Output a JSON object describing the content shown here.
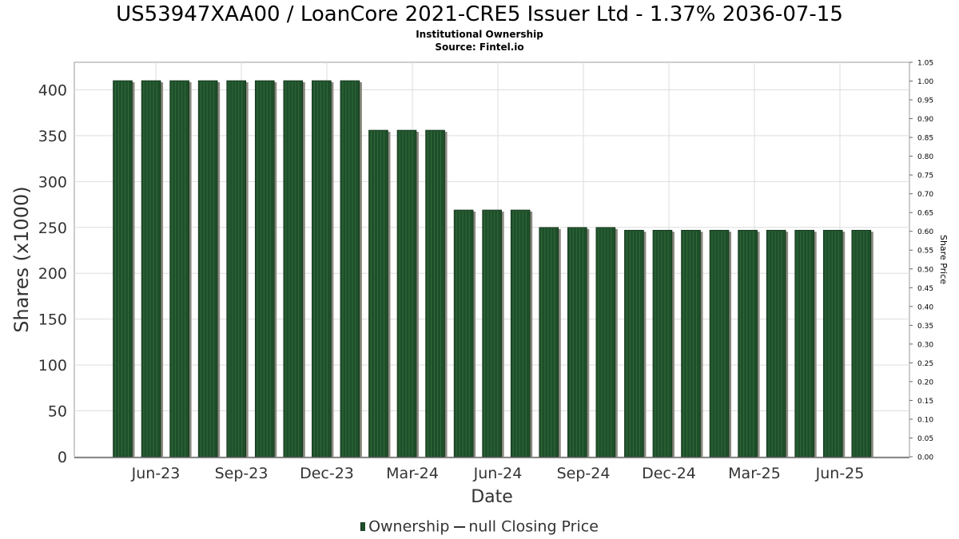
{
  "title": "US53947XAA00 / LoanCore 2021-CRE5 Issuer Ltd - 1.37% 2036-07-15",
  "subtitle_line1": "Institutional Ownership",
  "subtitle_line2": "Source: Fintel.io",
  "legend": {
    "ownership_label": "Ownership",
    "price_label": "null Closing Price"
  },
  "colors": {
    "bar_fill": "#1f4f2a",
    "bar_stripe": "#2e6b3a",
    "bar_shadow": "#8a8a80",
    "grid": "#dddddd"
  },
  "chart_data": {
    "type": "bar",
    "xlabel": "Date",
    "ylabel": "Shares (x1000)",
    "y2label": "Share Price",
    "ylim": [
      0,
      430
    ],
    "y2lim": [
      0,
      1.05
    ],
    "yticks": [
      0,
      50,
      100,
      150,
      200,
      250,
      300,
      350,
      400
    ],
    "y2ticks": [
      "0.00",
      "0.05",
      "0.10",
      "0.15",
      "0.20",
      "0.25",
      "0.30",
      "0.35",
      "0.40",
      "0.45",
      "0.50",
      "0.55",
      "0.60",
      "0.65",
      "0.70",
      "0.75",
      "0.80",
      "0.85",
      "0.90",
      "0.95",
      "1.00",
      "1.05"
    ],
    "xticks": [
      "Jun-23",
      "Sep-23",
      "Dec-23",
      "Mar-24",
      "Jun-24",
      "Sep-24",
      "Dec-24",
      "Mar-25",
      "Jun-25"
    ],
    "grid": true,
    "legend_position": "bottom",
    "series": [
      {
        "name": "Ownership",
        "values": [
          410,
          410,
          410,
          410,
          410,
          410,
          410,
          410,
          410,
          356,
          356,
          356,
          269,
          269,
          269,
          250,
          250,
          250,
          247,
          247,
          247,
          247,
          247,
          247,
          247,
          247,
          247
        ]
      }
    ]
  }
}
